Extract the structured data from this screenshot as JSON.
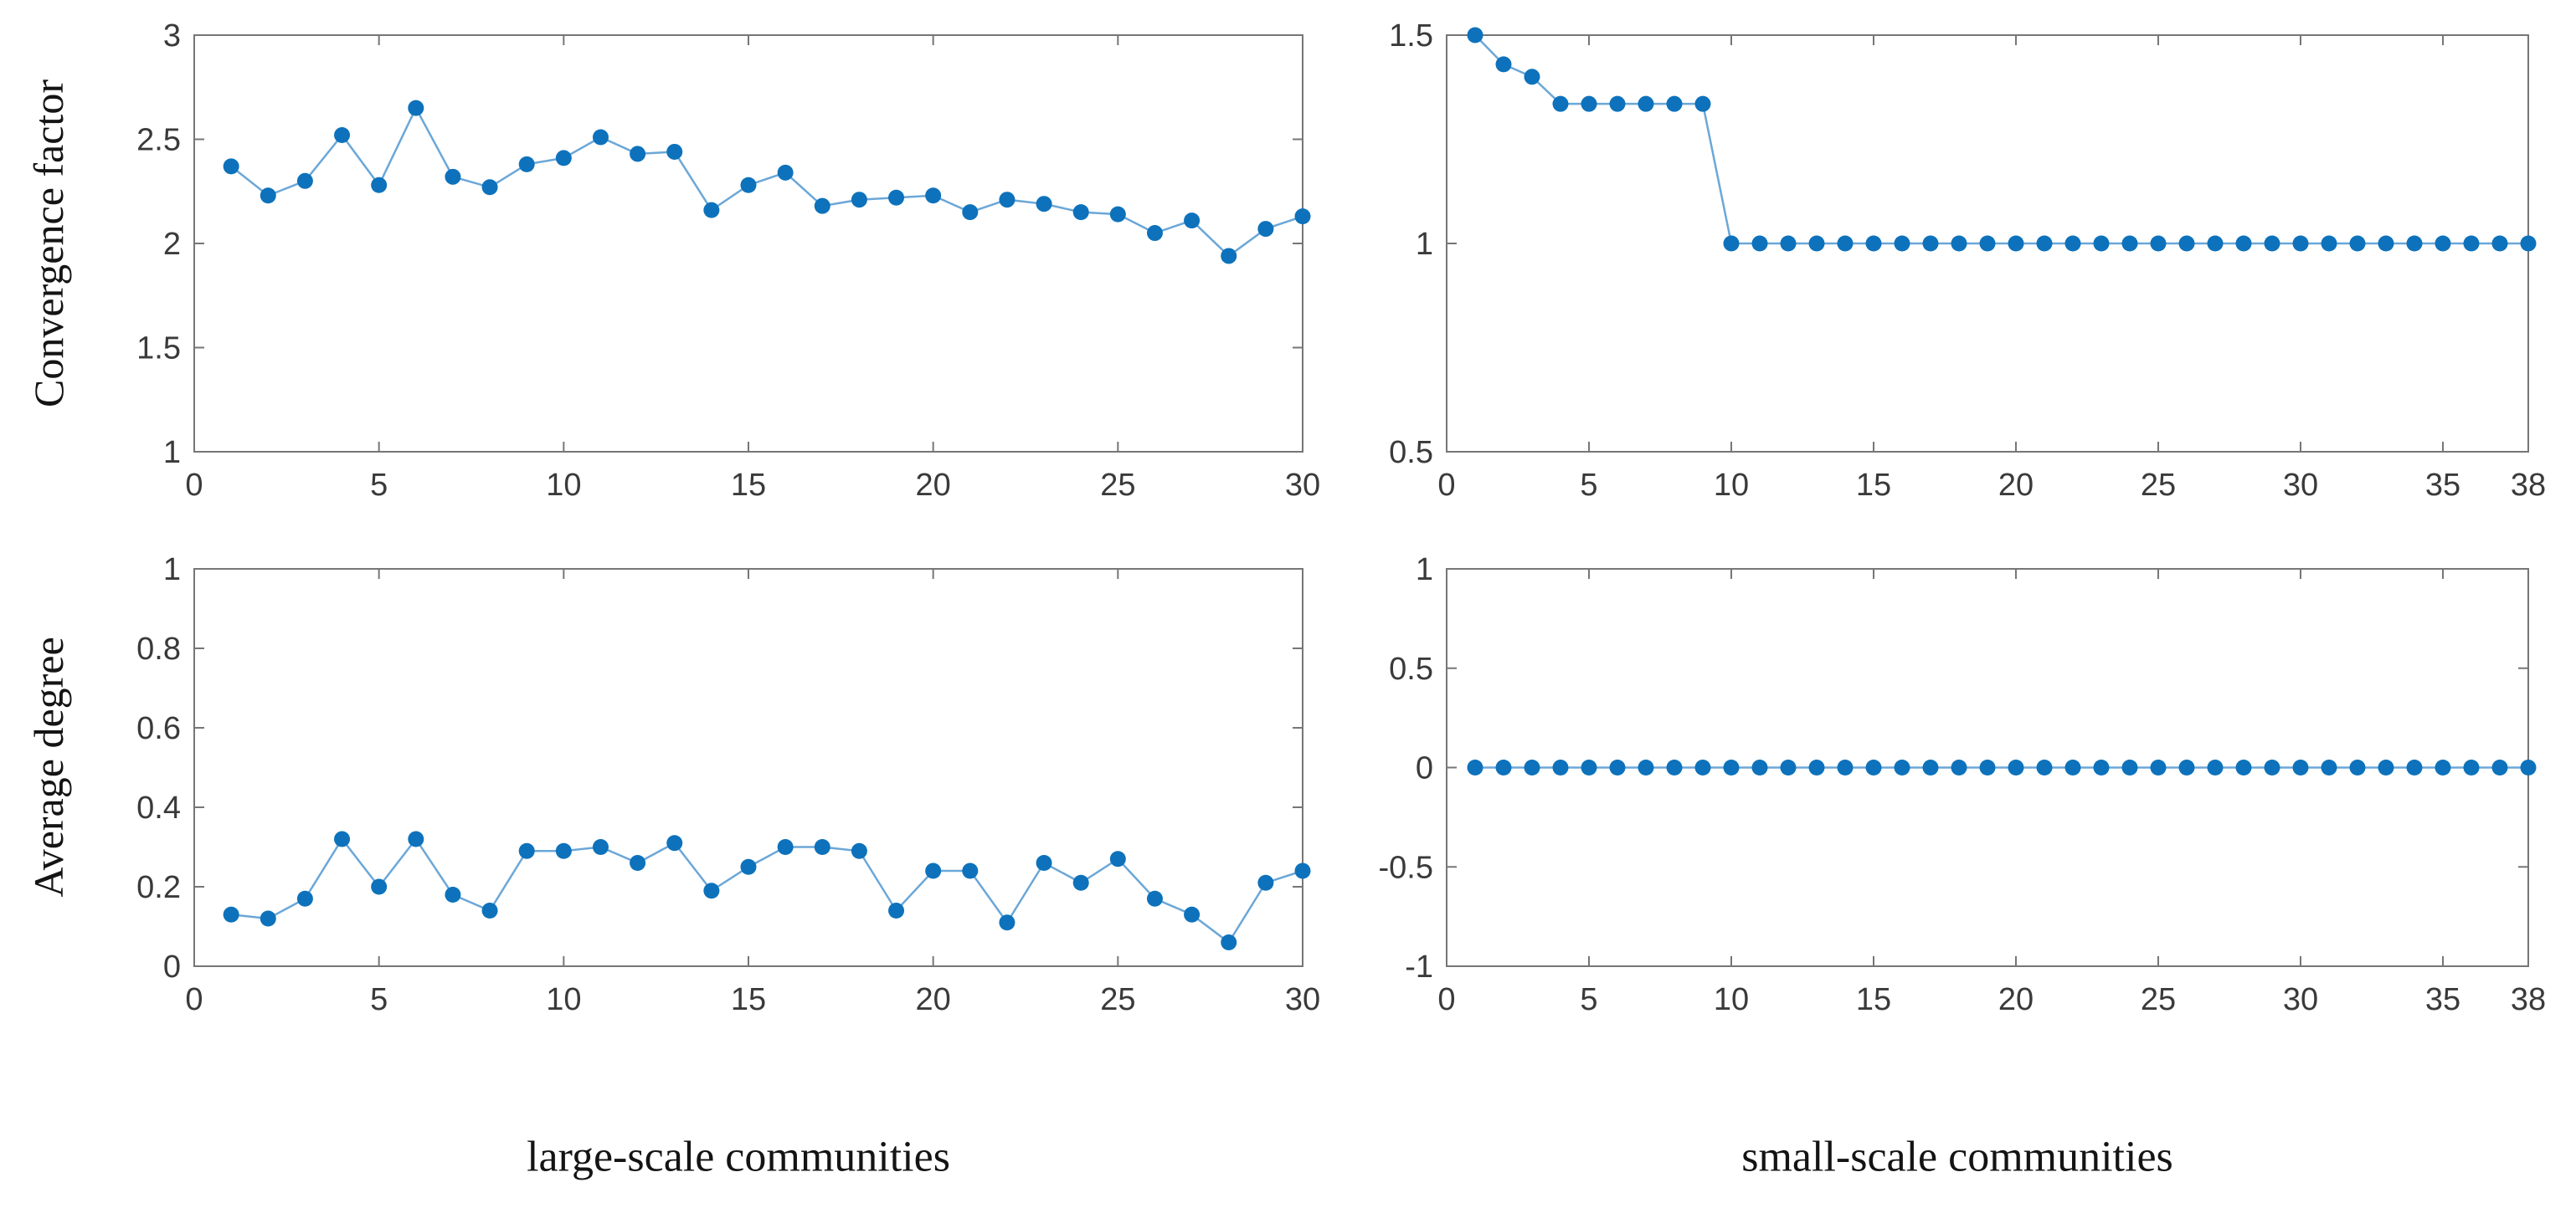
{
  "figure": {
    "background": "#ffffff",
    "marker_color": "#0d72bb",
    "line_color": "#6ba7d8",
    "axis_color": "#767676",
    "tick_text_color": "#3a3a3a",
    "label_text_color": "#141414",
    "row_labels": [
      "Convergence factor",
      "Average degree"
    ],
    "captions": [
      "large-scale communities",
      "small-scale communities"
    ]
  },
  "chart_data": [
    {
      "id": "convergence-large",
      "type": "line",
      "title": "",
      "xlabel": "",
      "ylabel": "Convergence factor",
      "caption": "large-scale communities",
      "legend_position": "none",
      "grid": false,
      "marker": "filled-circle",
      "x": [
        1,
        2,
        3,
        4,
        5,
        6,
        7,
        8,
        9,
        10,
        11,
        12,
        13,
        14,
        15,
        16,
        17,
        18,
        19,
        20,
        21,
        22,
        23,
        24,
        25,
        26,
        27,
        28,
        29,
        30
      ],
      "y": [
        2.37,
        2.23,
        2.3,
        2.52,
        2.28,
        2.65,
        2.32,
        2.27,
        2.38,
        2.41,
        2.51,
        2.43,
        2.44,
        2.16,
        2.28,
        2.34,
        2.18,
        2.21,
        2.22,
        2.23,
        2.15,
        2.21,
        2.19,
        2.15,
        2.14,
        2.05,
        2.11,
        1.94,
        2.07,
        2.13
      ],
      "xlim": [
        0,
        30
      ],
      "ylim": [
        1,
        3
      ],
      "xticks": [
        0,
        5,
        10,
        15,
        20,
        25,
        30
      ],
      "yticks": [
        1,
        1.5,
        2,
        2.5,
        3
      ]
    },
    {
      "id": "convergence-small",
      "type": "line",
      "title": "",
      "xlabel": "",
      "ylabel": "Convergence factor",
      "caption": "small-scale communities",
      "legend_position": "none",
      "grid": false,
      "marker": "filled-circle",
      "x": [
        1,
        2,
        3,
        4,
        5,
        6,
        7,
        8,
        9,
        10,
        11,
        12,
        13,
        14,
        15,
        16,
        17,
        18,
        19,
        20,
        21,
        22,
        23,
        24,
        25,
        26,
        27,
        28,
        29,
        30,
        31,
        32,
        33,
        34,
        35,
        36,
        37,
        38
      ],
      "y": [
        1.5,
        1.43,
        1.4,
        1.335,
        1.335,
        1.335,
        1.335,
        1.335,
        1.335,
        1,
        1,
        1,
        1,
        1,
        1,
        1,
        1,
        1,
        1,
        1,
        1,
        1,
        1,
        1,
        1,
        1,
        1,
        1,
        1,
        1,
        1,
        1,
        1,
        1,
        1,
        1,
        1,
        1
      ],
      "xlim": [
        0,
        38
      ],
      "ylim": [
        0.5,
        1.5
      ],
      "xticks": [
        0,
        5,
        10,
        15,
        20,
        25,
        30,
        35,
        38
      ],
      "yticks": [
        0.5,
        1,
        1.5
      ]
    },
    {
      "id": "avgdegree-large",
      "type": "line",
      "title": "",
      "xlabel": "",
      "ylabel": "Average degree",
      "caption": "large-scale communities",
      "legend_position": "none",
      "grid": false,
      "marker": "filled-circle",
      "x": [
        1,
        2,
        3,
        4,
        5,
        6,
        7,
        8,
        9,
        10,
        11,
        12,
        13,
        14,
        15,
        16,
        17,
        18,
        19,
        20,
        21,
        22,
        23,
        24,
        25,
        26,
        27,
        28,
        29,
        30
      ],
      "y": [
        0.13,
        0.12,
        0.17,
        0.32,
        0.2,
        0.32,
        0.18,
        0.14,
        0.29,
        0.29,
        0.3,
        0.26,
        0.31,
        0.19,
        0.25,
        0.3,
        0.3,
        0.29,
        0.14,
        0.24,
        0.24,
        0.11,
        0.26,
        0.21,
        0.27,
        0.17,
        0.13,
        0.06,
        0.21,
        0.24
      ],
      "xlim": [
        0,
        30
      ],
      "ylim": [
        0,
        1
      ],
      "xticks": [
        0,
        5,
        10,
        15,
        20,
        25,
        30
      ],
      "yticks": [
        0,
        0.2,
        0.4,
        0.6,
        0.8,
        1
      ]
    },
    {
      "id": "avgdegree-small",
      "type": "line",
      "title": "",
      "xlabel": "",
      "ylabel": "Average degree",
      "caption": "small-scale communities",
      "legend_position": "none",
      "grid": false,
      "marker": "filled-circle",
      "x": [
        1,
        2,
        3,
        4,
        5,
        6,
        7,
        8,
        9,
        10,
        11,
        12,
        13,
        14,
        15,
        16,
        17,
        18,
        19,
        20,
        21,
        22,
        23,
        24,
        25,
        26,
        27,
        28,
        29,
        30,
        31,
        32,
        33,
        34,
        35,
        36,
        37,
        38
      ],
      "y": [
        0,
        0,
        0,
        0,
        0,
        0,
        0,
        0,
        0,
        0,
        0,
        0,
        0,
        0,
        0,
        0,
        0,
        0,
        0,
        0,
        0,
        0,
        0,
        0,
        0,
        0,
        0,
        0,
        0,
        0,
        0,
        0,
        0,
        0,
        0,
        0,
        0,
        0
      ],
      "xlim": [
        0,
        38
      ],
      "ylim": [
        -1,
        1
      ],
      "xticks": [
        0,
        5,
        10,
        15,
        20,
        25,
        30,
        35,
        38
      ],
      "yticks": [
        -1,
        -0.5,
        0,
        0.5,
        1
      ]
    }
  ]
}
